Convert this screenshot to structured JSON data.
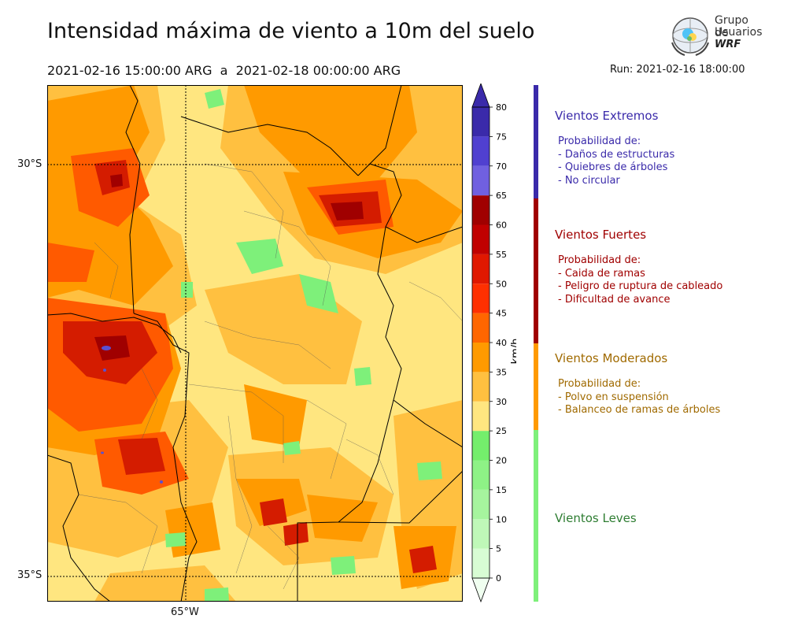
{
  "header": {
    "title": "Intensidad máxima de viento a 10m del suelo",
    "period": "2021-02-16 15:00:00 ARG  a  2021-02-18 00:00:00 ARG",
    "run": "Run: 2021-02-16 18:00:00"
  },
  "logo": {
    "line1": "Grupo de",
    "line2": "Usuarios",
    "line3": "WRF"
  },
  "map": {
    "lat_labels": [
      "30°S",
      "35°S"
    ],
    "lon_labels": [
      "65°W"
    ],
    "colors": {
      "light_yellow": "#ffe680",
      "orange_light": "#ffc040",
      "orange": "#ff9a00",
      "orange_red": "#ff6600",
      "red": "#e02000",
      "dark_red": "#c00000",
      "green": "#7ef07a",
      "purple": "#5a50d0"
    }
  },
  "colorbar": {
    "unit": "km/h",
    "ticks": [
      "0",
      "5",
      "10",
      "15",
      "20",
      "25",
      "30",
      "35",
      "40",
      "45",
      "50",
      "55",
      "60",
      "65",
      "70",
      "75",
      "80"
    ],
    "bins": [
      "#f0fff0",
      "#d8fcd4",
      "#bff8b8",
      "#a6f49e",
      "#8ef286",
      "#74ee6c",
      "#ffe680",
      "#ffc040",
      "#ff9a00",
      "#ff6600",
      "#ff3000",
      "#e01800",
      "#c00000",
      "#a00000",
      "#7060e0",
      "#5040d0",
      "#3a2aaa"
    ]
  },
  "legend": {
    "categories": [
      {
        "title": "Vientos Extremos",
        "color": "#3a2aaa",
        "desc": [
          "Probabilidad de:",
          "- Daños de estructuras",
          "- Quiebres de árboles",
          "- No circular"
        ]
      },
      {
        "title": "Vientos Fuertes",
        "color": "#a00000",
        "desc": [
          "Probabilidad de:",
          "- Caida de ramas",
          "- Peligro de ruptura de cableado",
          "- Dificultad de avance"
        ]
      },
      {
        "title": "Vientos Moderados",
        "color": "#a06a00",
        "desc": [
          "Probabilidad de:",
          "- Polvo en suspensión",
          "- Balanceo de ramas de árboles"
        ]
      },
      {
        "title": "Vientos Leves",
        "color": "#2e7d32",
        "desc": []
      }
    ],
    "bar_colors": [
      "#3a2aaa",
      "#a00000",
      "#ff9a00",
      "#7ef07a"
    ]
  }
}
